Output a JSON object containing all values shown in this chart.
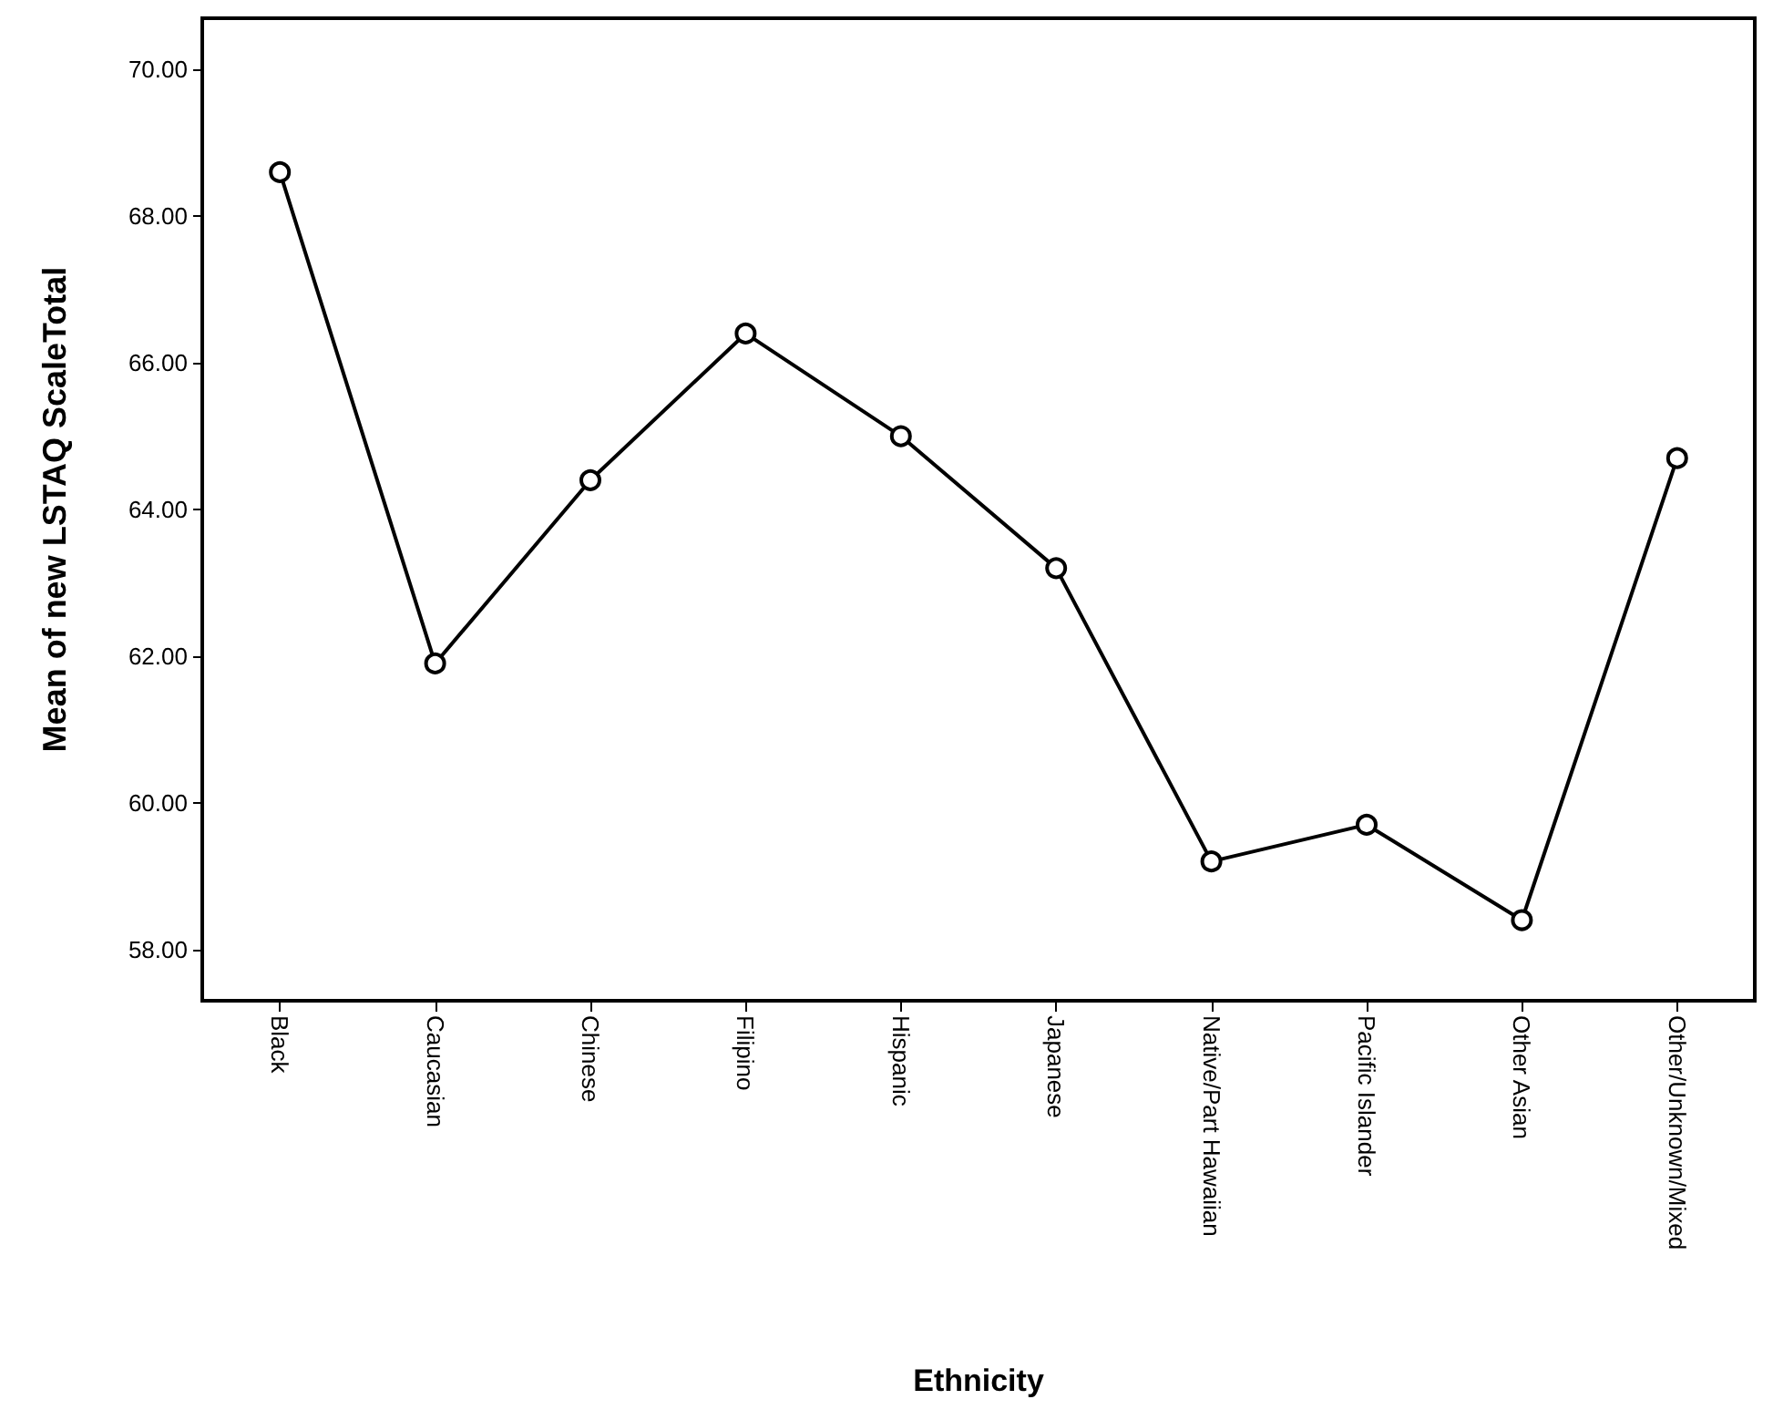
{
  "chart_data": {
    "type": "line",
    "xlabel": "Ethnicity",
    "ylabel": "Mean of new LSTAQ ScaleTotal",
    "categories": [
      "Black",
      "Caucasian",
      "Chinese",
      "Filipino",
      "Hispanic",
      "Japanese",
      "Native/Part Hawaiian",
      "Pacific Islander",
      "Other Asian",
      "Other/Unknown/Mixed"
    ],
    "series": [
      {
        "color": "#000000",
        "values": [
          68.6,
          61.9,
          64.4,
          66.4,
          65.0,
          63.2,
          59.2,
          59.7,
          58.4,
          64.7
        ]
      }
    ],
    "ylim": [
      57.3,
      70.7
    ],
    "yticks": [
      {
        "value": 58,
        "label": "58.00"
      },
      {
        "value": 60,
        "label": "60.00"
      },
      {
        "value": 62,
        "label": "62.00"
      },
      {
        "value": 64,
        "label": "64.00"
      },
      {
        "value": 66,
        "label": "66.00"
      },
      {
        "value": 68,
        "label": "68.00"
      },
      {
        "value": 70,
        "label": "70.00"
      }
    ],
    "grid": false,
    "marker": "circle",
    "line_style": "solid"
  }
}
